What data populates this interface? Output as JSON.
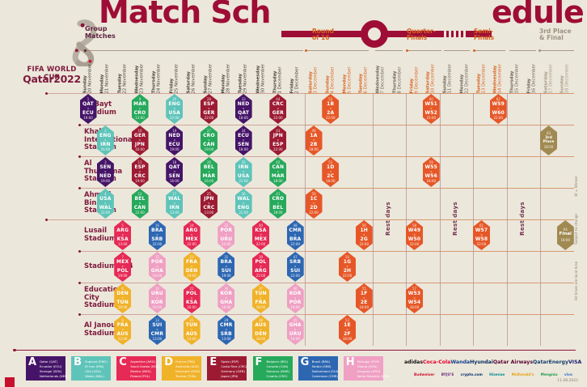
{
  "header": {
    "title_left": "Match Sch",
    "title_right": "edule",
    "logo_line1": "FIFA WORLD CUP",
    "logo_line2": "Qatar2022"
  },
  "sections": [
    {
      "line1": "Group",
      "line2": "Matches",
      "style": "group"
    },
    {
      "line1": "Round",
      "line2": "of 16",
      "style": "ko"
    },
    {
      "line1": "Quarter-",
      "line2": "Finals",
      "style": "ko"
    },
    {
      "line1": "Semi-",
      "line2": "Finals",
      "style": "ko"
    },
    {
      "line1": "3rd Place",
      "line2": "& Final",
      "style": "fin"
    }
  ],
  "dates": [
    {
      "day": "Sunday",
      "date": "20 November",
      "phase": "group"
    },
    {
      "day": "Monday",
      "date": "21 November",
      "phase": "group"
    },
    {
      "day": "Tuesday",
      "date": "22 November",
      "phase": "group"
    },
    {
      "day": "Wednesday",
      "date": "23 November",
      "phase": "group"
    },
    {
      "day": "Thursday",
      "date": "24 November",
      "phase": "group"
    },
    {
      "day": "Friday",
      "date": "25 November",
      "phase": "group"
    },
    {
      "day": "Saturday",
      "date": "26 November",
      "phase": "group"
    },
    {
      "day": "Sunday",
      "date": "27 November",
      "phase": "group"
    },
    {
      "day": "Monday",
      "date": "28 November",
      "phase": "group"
    },
    {
      "day": "Tuesday",
      "date": "29 November",
      "phase": "group"
    },
    {
      "day": "Wednesday",
      "date": "30 November",
      "phase": "group"
    },
    {
      "day": "Thursday",
      "date": "1 December",
      "phase": "group"
    },
    {
      "day": "Friday",
      "date": "2 December",
      "phase": "group"
    },
    {
      "day": "Saturday",
      "date": "3 December",
      "phase": "r16"
    },
    {
      "day": "Sunday",
      "date": "4 December",
      "phase": "r16"
    },
    {
      "day": "Monday",
      "date": "5 December",
      "phase": "r16"
    },
    {
      "day": "Tuesday",
      "date": "6 December",
      "phase": "r16"
    },
    {
      "day": "Wednesday",
      "date": "7 December",
      "phase": "rest"
    },
    {
      "day": "Thursday",
      "date": "8 December",
      "phase": "rest"
    },
    {
      "day": "Friday",
      "date": "9 December",
      "phase": "qf"
    },
    {
      "day": "Saturday",
      "date": "10 December",
      "phase": "qf"
    },
    {
      "day": "Sunday",
      "date": "11 December",
      "phase": "rest"
    },
    {
      "day": "Monday",
      "date": "12 December",
      "phase": "rest"
    },
    {
      "day": "Tuesday",
      "date": "13 December",
      "phase": "sf"
    },
    {
      "day": "Wednesday",
      "date": "14 December",
      "phase": "sf"
    },
    {
      "day": "Thursday",
      "date": "15 December",
      "phase": "rest"
    },
    {
      "day": "Friday",
      "date": "16 December",
      "phase": "rest"
    },
    {
      "day": "Saturday",
      "date": "17 December",
      "phase": "finals"
    },
    {
      "day": "Sunday",
      "date": "18 December",
      "phase": "finals"
    }
  ],
  "stadiums": [
    [
      "Al Bayt",
      "Stadium"
    ],
    [
      "Khalifa",
      "International",
      "Stadium"
    ],
    [
      "Al",
      "Thumama",
      "Stadium"
    ],
    [
      "Ahmad",
      "Bin Ali",
      "Stadium"
    ],
    [
      "Lusail",
      "Stadium"
    ],
    [
      "Stadium 974"
    ],
    [
      "Education",
      "City",
      "Stadium"
    ],
    [
      "Al Janoub",
      "Stadium"
    ]
  ],
  "colors": {
    "A": "#451468",
    "B": "#5ec4b9",
    "C": "#e62a55",
    "D": "#f0b229",
    "E": "#9c1b33",
    "F": "#27a95c",
    "G": "#2d67b2",
    "H": "#efa0c3",
    "KO": "#e65727",
    "G3": "#a08a52",
    "GF": "#a08a52",
    "accent": "#9e0d35",
    "maroon": "#7d1a3c",
    "orange": "#d4621f",
    "taupe": "#9c9283"
  },
  "matches": [
    [
      0,
      0,
      "A",
      1,
      "QAT",
      "ECU",
      "19:00"
    ],
    [
      0,
      3,
      "F",
      9,
      "MAR",
      "CRO",
      "13:00"
    ],
    [
      0,
      5,
      "B",
      20,
      "ENG",
      "USA",
      "22:00"
    ],
    [
      0,
      7,
      "E",
      28,
      "ESP",
      "GER",
      "22:00"
    ],
    [
      0,
      9,
      "A",
      33,
      "NED",
      "QAT",
      "18:00"
    ],
    [
      0,
      11,
      "E",
      44,
      "CRC",
      "GER",
      "22:00"
    ],
    [
      0,
      14,
      "KO",
      52,
      "1B",
      "2A",
      "22:00"
    ],
    [
      0,
      20,
      "KO",
      60,
      "W51",
      "W52",
      "22:00"
    ],
    [
      0,
      24,
      "KO",
      62,
      "W59",
      "W60",
      "22:00"
    ],
    [
      1,
      1,
      "B",
      2,
      "ENG",
      "IRN",
      "16:00"
    ],
    [
      1,
      3,
      "E",
      10,
      "GER",
      "JPN",
      "16:00"
    ],
    [
      1,
      5,
      "A",
      19,
      "NED",
      "ECU",
      "19:00"
    ],
    [
      1,
      7,
      "F",
      27,
      "CRO",
      "CAN",
      "19:00"
    ],
    [
      1,
      9,
      "A",
      34,
      "ECU",
      "SEN",
      "18:00"
    ],
    [
      1,
      11,
      "E",
      43,
      "JPN",
      "ESP",
      "22:00"
    ],
    [
      1,
      13,
      "KO",
      49,
      "1A",
      "2B",
      "18:00"
    ],
    [
      1,
      27,
      "G3",
      63,
      "3rd",
      "Place",
      "18:00"
    ],
    [
      2,
      1,
      "A",
      3,
      "SEN",
      "NED",
      "19:00"
    ],
    [
      2,
      3,
      "E",
      11,
      "ESP",
      "CRC",
      "19:00"
    ],
    [
      2,
      5,
      "A",
      18,
      "QAT",
      "SEN",
      "16:00"
    ],
    [
      2,
      7,
      "F",
      26,
      "BEL",
      "MAR",
      "16:00"
    ],
    [
      2,
      9,
      "B",
      35,
      "IRN",
      "USA",
      "22:00"
    ],
    [
      2,
      11,
      "F",
      42,
      "CAN",
      "MAR",
      "18:00"
    ],
    [
      2,
      14,
      "KO",
      51,
      "1D",
      "2C",
      "18:00"
    ],
    [
      2,
      20,
      "KO",
      59,
      "W55",
      "W56",
      "18:00"
    ],
    [
      3,
      1,
      "B",
      4,
      "USA",
      "WAL",
      "22:00"
    ],
    [
      3,
      3,
      "F",
      12,
      "BEL",
      "CAN",
      "22:00"
    ],
    [
      3,
      5,
      "B",
      17,
      "WAL",
      "IRN",
      "13:00"
    ],
    [
      3,
      7,
      "E",
      25,
      "JPN",
      "CRC",
      "13:00"
    ],
    [
      3,
      9,
      "B",
      36,
      "WAL",
      "ENG",
      "22:00"
    ],
    [
      3,
      11,
      "F",
      41,
      "CRO",
      "BEL",
      "18:00"
    ],
    [
      3,
      13,
      "KO",
      50,
      "1C",
      "2D",
      "22:00"
    ],
    [
      4,
      2,
      "C",
      5,
      "ARG",
      "KSA",
      "13:00"
    ],
    [
      4,
      4,
      "G",
      16,
      "BRA",
      "SRB",
      "22:00"
    ],
    [
      4,
      6,
      "C",
      24,
      "ARG",
      "MEX",
      "22:00"
    ],
    [
      4,
      8,
      "H",
      32,
      "POR",
      "URU",
      "22:00"
    ],
    [
      4,
      10,
      "C",
      40,
      "KSA",
      "MEX",
      "22:00"
    ],
    [
      4,
      12,
      "G",
      48,
      "CMR",
      "BRA",
      "22:00"
    ],
    [
      4,
      16,
      "KO",
      56,
      "1H",
      "2G",
      "22:00"
    ],
    [
      4,
      19,
      "KO",
      58,
      "W49",
      "W50",
      "22:00"
    ],
    [
      4,
      23,
      "KO",
      61,
      "W57",
      "W58",
      "22:00"
    ],
    [
      4,
      28,
      "GF",
      64,
      "Final",
      "",
      "18:00"
    ],
    [
      5,
      2,
      "C",
      7,
      "MEX",
      "POL",
      "19:00"
    ],
    [
      5,
      4,
      "H",
      15,
      "POR",
      "GHA",
      "19:00"
    ],
    [
      5,
      6,
      "D",
      23,
      "FRA",
      "DEN",
      "19:00"
    ],
    [
      5,
      8,
      "G",
      31,
      "BRA",
      "SUI",
      "19:00"
    ],
    [
      5,
      10,
      "C",
      39,
      "POL",
      "ARG",
      "22:00"
    ],
    [
      5,
      12,
      "G",
      47,
      "SRB",
      "SUI",
      "22:00"
    ],
    [
      5,
      15,
      "KO",
      54,
      "1G",
      "2H",
      "22:00"
    ],
    [
      6,
      2,
      "D",
      6,
      "DEN",
      "TUN",
      "16:00"
    ],
    [
      6,
      4,
      "H",
      14,
      "URU",
      "KOR",
      "16:00"
    ],
    [
      6,
      6,
      "C",
      22,
      "POL",
      "KSA",
      "16:00"
    ],
    [
      6,
      8,
      "H",
      30,
      "KOR",
      "GHA",
      "16:00"
    ],
    [
      6,
      10,
      "D",
      37,
      "TUN",
      "FRA",
      "18:00"
    ],
    [
      6,
      12,
      "H",
      46,
      "KOR",
      "POR",
      "18:00"
    ],
    [
      6,
      16,
      "KO",
      55,
      "1F",
      "2E",
      "18:00"
    ],
    [
      6,
      19,
      "KO",
      57,
      "W53",
      "W54",
      "18:00"
    ],
    [
      7,
      2,
      "D",
      8,
      "FRA",
      "AUS",
      "22:00"
    ],
    [
      7,
      4,
      "G",
      13,
      "SUI",
      "CMR",
      "13:00"
    ],
    [
      7,
      6,
      "D",
      21,
      "TUN",
      "AUS",
      "13:00"
    ],
    [
      7,
      8,
      "G",
      29,
      "CMR",
      "SRB",
      "13:00"
    ],
    [
      7,
      10,
      "D",
      38,
      "AUS",
      "DEN",
      "18:00"
    ],
    [
      7,
      12,
      "H",
      45,
      "GHA",
      "URU",
      "18:00"
    ],
    [
      7,
      15,
      "KO",
      53,
      "1E",
      "2F",
      "18:00"
    ]
  ],
  "rest_days_label": "Rest days",
  "notes": [
    "W = Winner",
    "Subject to change",
    "All times are local time"
  ],
  "legend": [
    {
      "letter": "A",
      "color": "#451468",
      "teams": [
        "Qatar (QAT)",
        "Ecuador (ECU)",
        "Senegal (SEN)",
        "Netherlands (NED)"
      ]
    },
    {
      "letter": "B",
      "color": "#5ec4b9",
      "teams": [
        "England (ENG)",
        "IR Iran (IRN)",
        "USA (USA)",
        "Wales (WAL)"
      ]
    },
    {
      "letter": "C",
      "color": "#e62a55",
      "teams": [
        "Argentina (ARG)",
        "Saudi Arabia (KSA)",
        "Mexico (MEX)",
        "Poland (POL)"
      ]
    },
    {
      "letter": "D",
      "color": "#f0b229",
      "teams": [
        "France (FRA)",
        "Australia (AUS)",
        "Denmark (DEN)",
        "Tunisia (TUN)"
      ]
    },
    {
      "letter": "E",
      "color": "#9c1b33",
      "teams": [
        "Spain (ESP)",
        "Costa Rica (CRC)",
        "Germany (GER)",
        "Japan (JPN)"
      ]
    },
    {
      "letter": "F",
      "color": "#27a95c",
      "teams": [
        "Belgium (BEL)",
        "Canada (CAN)",
        "Morocco (MAR)",
        "Croatia (CRO)"
      ]
    },
    {
      "letter": "G",
      "color": "#2d67b2",
      "teams": [
        "Brazil (BRA)",
        "Serbia (SRB)",
        "Switzerland (SUI)",
        "Cameroon (CMR)"
      ]
    },
    {
      "letter": "H",
      "color": "#efa0c3",
      "teams": [
        "Portugal (POR)",
        "Ghana (GHA)",
        "Uruguay (URU)",
        "Korea Republic (KOR)"
      ]
    }
  ],
  "sponsors_row1": [
    {
      "name": "adidas",
      "color": "#111111"
    },
    {
      "name": "Coca-Cola",
      "color": "#e4002b"
    },
    {
      "name": "Wanda",
      "color": "#16418c"
    },
    {
      "name": "Hyundai",
      "color": "#002c5f"
    },
    {
      "name": "Qatar Airways",
      "color": "#5c0632"
    },
    {
      "name": "QatarEnergy",
      "color": "#123f6d"
    },
    {
      "name": "VISA",
      "color": "#1a1f71"
    }
  ],
  "sponsors_row2": [
    {
      "name": "Budweiser",
      "color": "#c8102e"
    },
    {
      "name": "BYJU'S",
      "color": "#6c2d85"
    },
    {
      "name": "crypto.com",
      "color": "#03316c"
    },
    {
      "name": "Hisense",
      "color": "#008c8c"
    },
    {
      "name": "McDonald's",
      "color": "#e2a213"
    },
    {
      "name": "Mengniu",
      "color": "#1f9d4d"
    },
    {
      "name": "vivo",
      "color": "#2f6fc4"
    }
  ],
  "footnote": "11.08.2022"
}
